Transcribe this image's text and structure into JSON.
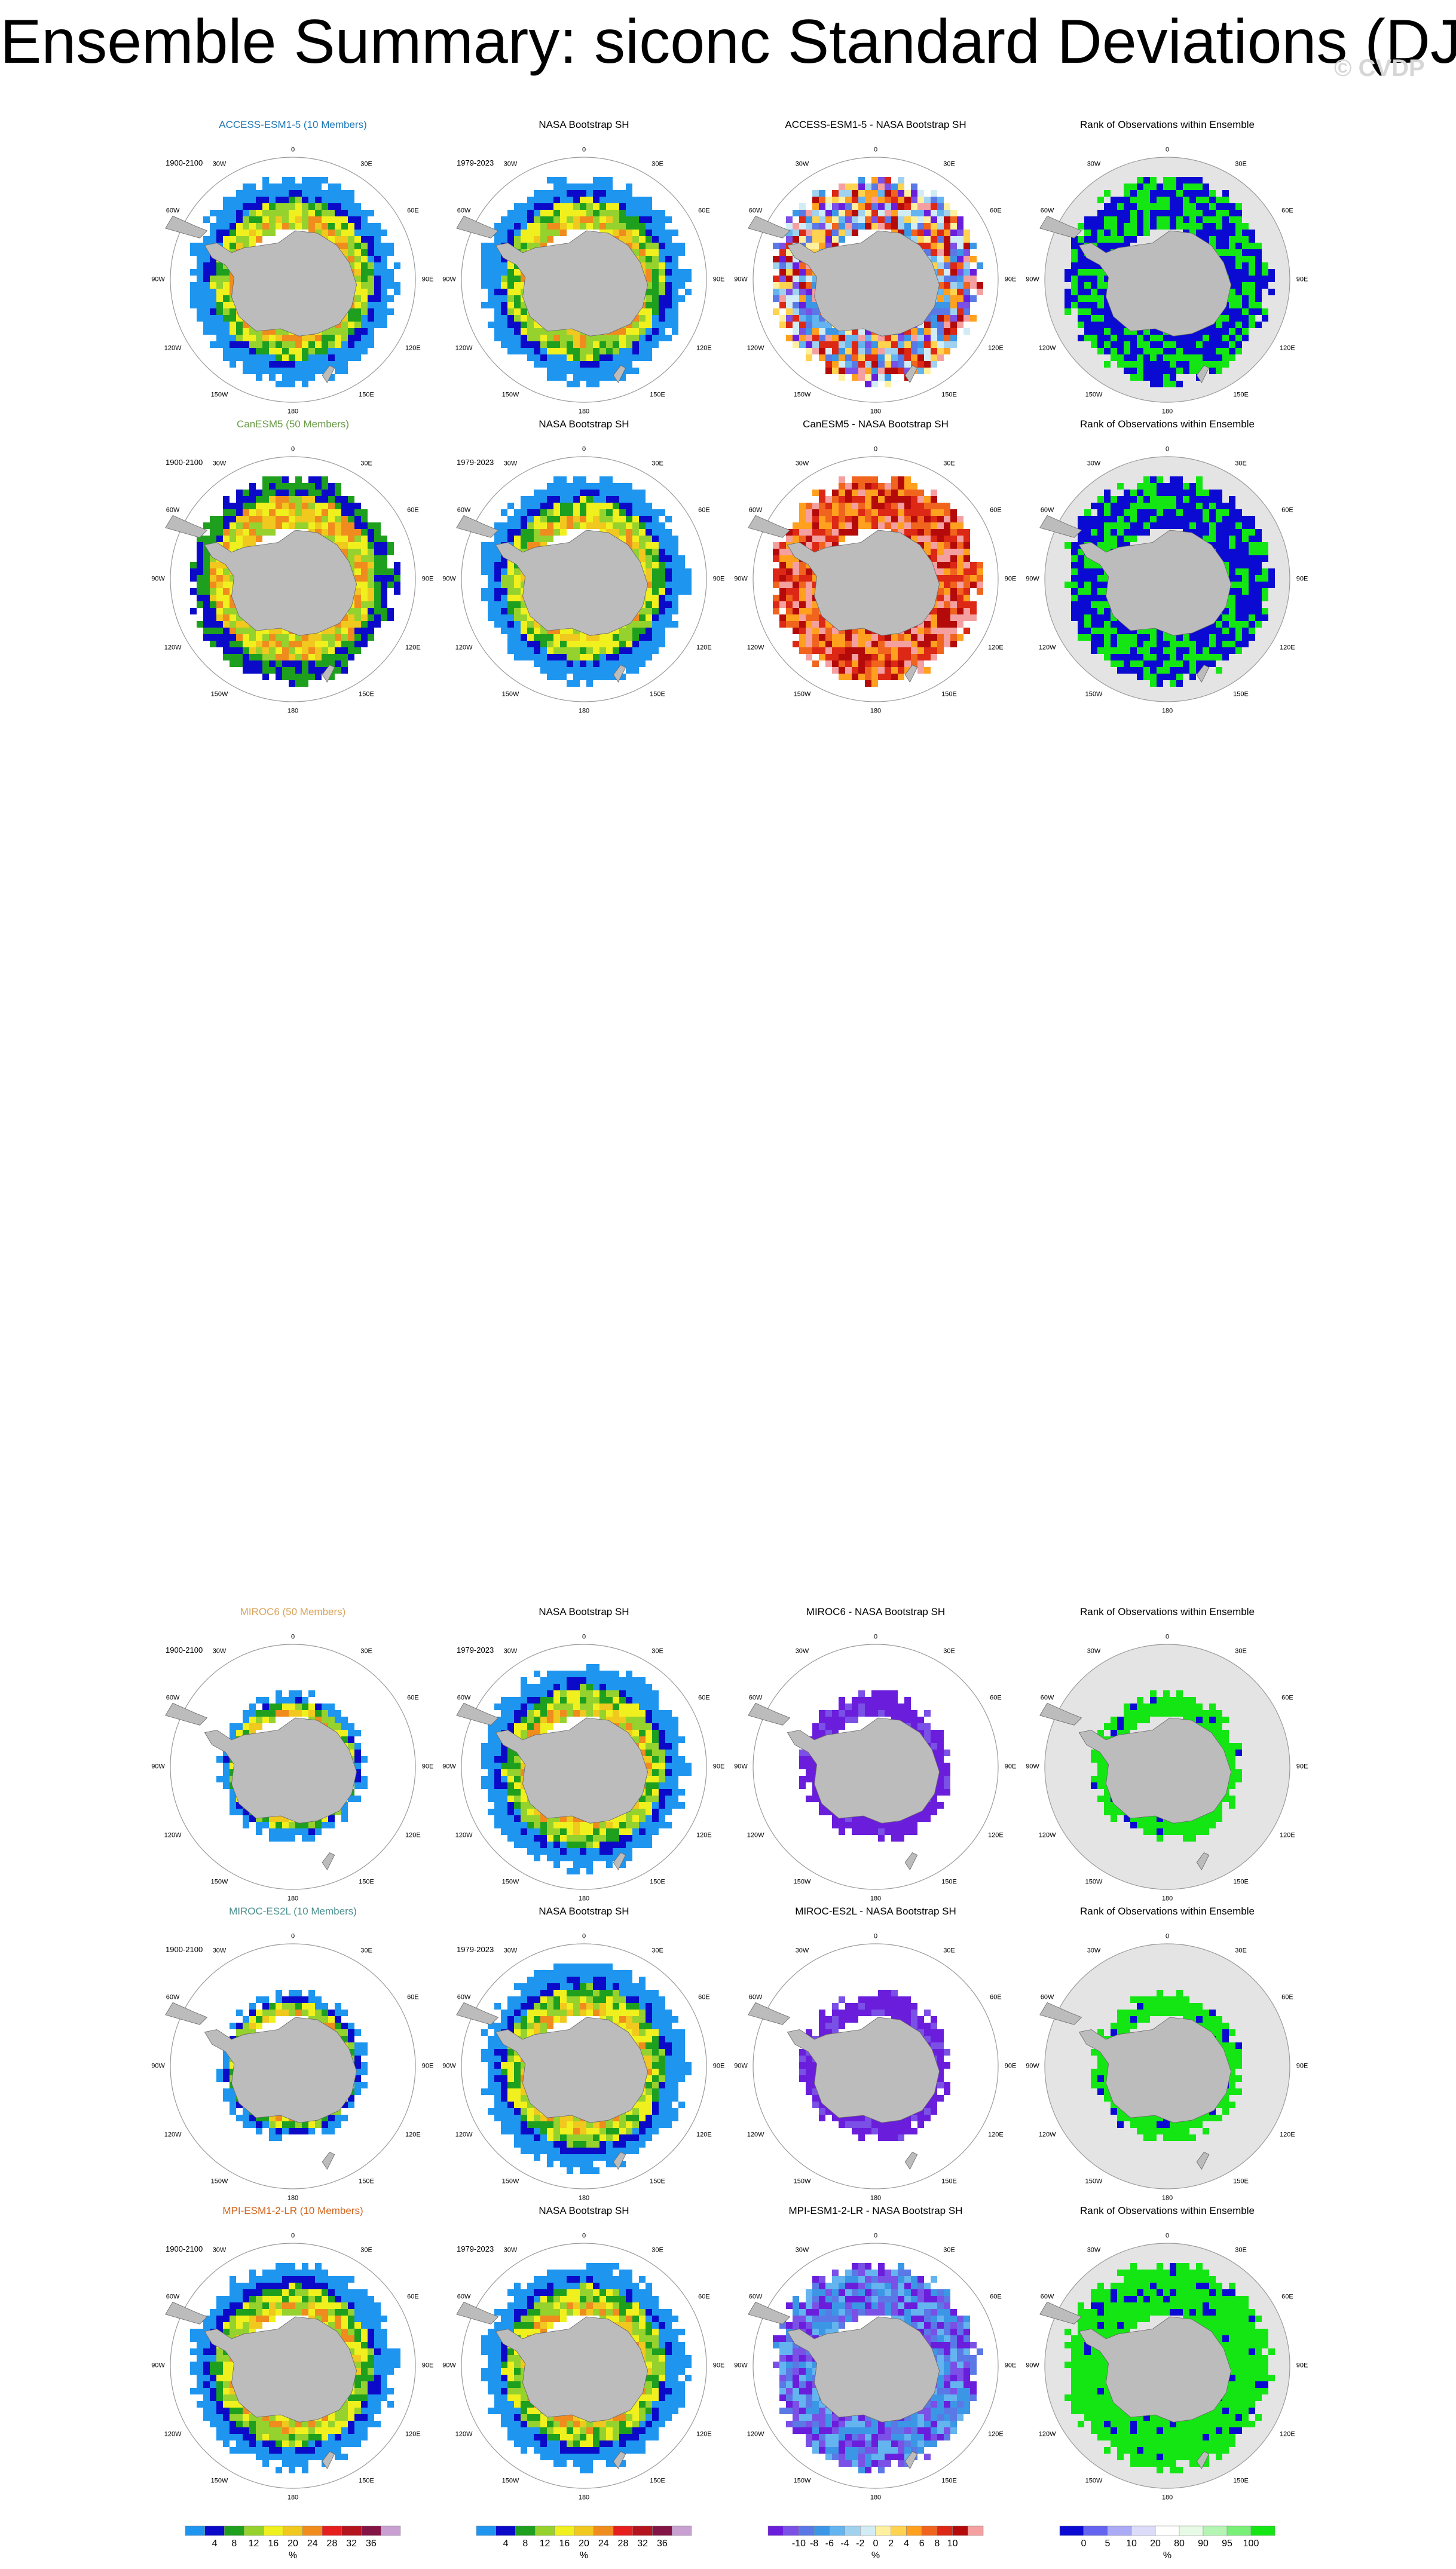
{
  "title": "Ensemble Summary: siconc Standard Deviations (DJF)",
  "watermark": "© CVDP",
  "lon_labels": {
    "top": "0",
    "r30": "30E",
    "r60": "60E",
    "r90": "90E",
    "r120": "120E",
    "r150": "150E",
    "bottom": "180",
    "l150": "150W",
    "l120": "120W",
    "l90": "90W",
    "l60": "60W",
    "l30": "30W"
  },
  "rows": [
    {
      "model": "ACCESS-ESM1-5 (10 Members)",
      "model_color": "#1f77b4",
      "model_period": "1900-2100",
      "obs": "NASA Bootstrap SH",
      "obs_period": "1979-2023",
      "diff": "ACCESS-ESM1-5 - NASA Bootstrap SH",
      "rank": "Rank of Observations within Ensemble"
    },
    {
      "model": "CanESM5 (50 Members)",
      "model_color": "#6a9a48",
      "model_period": "1900-2100",
      "obs": "NASA Bootstrap SH",
      "obs_period": "1979-2023",
      "diff": "CanESM5 - NASA Bootstrap SH",
      "rank": "Rank of Observations within Ensemble"
    },
    {
      "model": "MIROC6 (50 Members)",
      "model_color": "#d9a35a",
      "model_period": "1900-2100",
      "obs": "NASA Bootstrap SH",
      "obs_period": "1979-2023",
      "diff": "MIROC6 - NASA Bootstrap SH",
      "rank": "Rank of Observations within Ensemble"
    },
    {
      "model": "MIROC-ES2L (10 Members)",
      "model_color": "#4d8f8f",
      "model_period": "1900-2100",
      "obs": "NASA Bootstrap SH",
      "obs_period": "1979-2023",
      "diff": "MIROC-ES2L - NASA Bootstrap SH",
      "rank": "Rank of Observations within Ensemble"
    },
    {
      "model": "MPI-ESM1-2-LR (10 Members)",
      "model_color": "#d2641e",
      "model_period": "1900-2100",
      "obs": "NASA Bootstrap SH",
      "obs_period": "1979-2023",
      "diff": "MPI-ESM1-2-LR - NASA Bootstrap SH",
      "rank": "Rank of Observations within Ensemble"
    }
  ],
  "colorbars": [
    {
      "labels": [
        "4",
        "8",
        "12",
        "16",
        "20",
        "24",
        "28",
        "32",
        "36"
      ],
      "unit": "%",
      "colors": [
        "#1e96f0",
        "#0a0ac8",
        "#1ea01e",
        "#96d22d",
        "#f0f01e",
        "#f0c81e",
        "#f08c1e",
        "#e61e1e",
        "#b4141e",
        "#821446",
        "#c8a0d2"
      ]
    },
    {
      "labels": [
        "4",
        "8",
        "12",
        "16",
        "20",
        "24",
        "28",
        "32",
        "36"
      ],
      "unit": "%",
      "colors": [
        "#1e96f0",
        "#0a0ac8",
        "#1ea01e",
        "#96d22d",
        "#f0f01e",
        "#f0c81e",
        "#f08c1e",
        "#e61e1e",
        "#b4141e",
        "#821446",
        "#c8a0d2"
      ]
    },
    {
      "labels": [
        "-10",
        "-8",
        "-6",
        "-4",
        "-2",
        "0",
        "2",
        "4",
        "6",
        "8",
        "10"
      ],
      "unit": "%",
      "colors": [
        "#6a1edc",
        "#7a50e6",
        "#5a78e6",
        "#3c96e6",
        "#64b4f0",
        "#a0d2f0",
        "#d2ecf5",
        "#fff0a0",
        "#ffd250",
        "#ffa01e",
        "#f0641e",
        "#dc2814",
        "#b40a0a",
        "#f5a0a0"
      ]
    },
    {
      "labels": [
        "0",
        "5",
        "10",
        "20",
        "80",
        "90",
        "95",
        "100"
      ],
      "unit": "%",
      "colors": [
        "#0a0ad2",
        "#6464f0",
        "#aaaaf5",
        "#dcdcfa",
        "#ffffff",
        "#e6fae6",
        "#b4f5b4",
        "#78f078",
        "#14e614"
      ]
    }
  ]
}
